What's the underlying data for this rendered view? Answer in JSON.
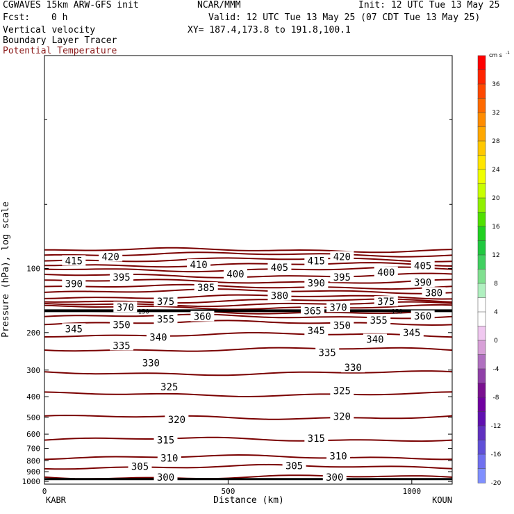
{
  "header": {
    "model": "CGWAVES 15km ARW-GFS init",
    "org": "NCAR/MMM",
    "init": "Init: 12 UTC Tue 13 May 25",
    "fcst_label": "Fcst:",
    "fcst_value": "0 h",
    "valid": "Valid: 12 UTC Tue 13 May 25 (07 CDT Tue 13 May 25)",
    "xy": "XY= 187.4,173.8 to 191.8,100.1",
    "field1": "Vertical velocity",
    "field2": "Boundary Layer Tracer",
    "field3": "Potential Temperature"
  },
  "colors": {
    "theta": "#7a0000",
    "field3_text": "#8b1a1a",
    "pbl": "#000000"
  },
  "chart_data": {
    "type": "line",
    "title": "",
    "xlabel": "Distance (km)",
    "ylabel": "Pressure (hPa), log scale",
    "xlim": [
      0,
      1110
    ],
    "ylim_hpa": [
      1030,
      10
    ],
    "y_scale": "log",
    "x_ticks": [
      0,
      500,
      1000
    ],
    "y_ticks": [
      100,
      200,
      300,
      400,
      500,
      600,
      700,
      800,
      900,
      1000
    ],
    "x_end_labels": [
      "KABR",
      "KOUN"
    ],
    "theta_levels_k": [
      300,
      305,
      310,
      315,
      320,
      325,
      330,
      335,
      340,
      345,
      350,
      355,
      360,
      365,
      370,
      375,
      380,
      385,
      390,
      395,
      400,
      405,
      410,
      415,
      420
    ],
    "theta_pressure_hpa": [
      955,
      855,
      770,
      635,
      500,
      390,
      310,
      240,
      205,
      180,
      168,
      160,
      152,
      147,
      142,
      136,
      128,
      122,
      115,
      108,
      101,
      96,
      91,
      86,
      82
    ],
    "contour_labels": [
      {
        "v": "300",
        "x": 330,
        "p": 955
      },
      {
        "v": "300",
        "x": 790,
        "p": 955
      },
      {
        "v": "305",
        "x": 260,
        "p": 850
      },
      {
        "v": "305",
        "x": 680,
        "p": 845
      },
      {
        "v": "310",
        "x": 340,
        "p": 778
      },
      {
        "v": "310",
        "x": 800,
        "p": 760
      },
      {
        "v": "315",
        "x": 330,
        "p": 640
      },
      {
        "v": "315",
        "x": 740,
        "p": 628
      },
      {
        "v": "320",
        "x": 360,
        "p": 512
      },
      {
        "v": "320",
        "x": 810,
        "p": 495
      },
      {
        "v": "325",
        "x": 340,
        "p": 360
      },
      {
        "v": "325",
        "x": 810,
        "p": 375
      },
      {
        "v": "330",
        "x": 290,
        "p": 278
      },
      {
        "v": "330",
        "x": 840,
        "p": 292
      },
      {
        "v": "335",
        "x": 210,
        "p": 230
      },
      {
        "v": "335",
        "x": 770,
        "p": 248
      },
      {
        "v": "340",
        "x": 310,
        "p": 210
      },
      {
        "v": "340",
        "x": 900,
        "p": 215
      },
      {
        "v": "345",
        "x": 80,
        "p": 192
      },
      {
        "v": "345",
        "x": 740,
        "p": 196
      },
      {
        "v": "345",
        "x": 1000,
        "p": 200
      },
      {
        "v": "350",
        "x": 210,
        "p": 184
      },
      {
        "v": "350",
        "x": 810,
        "p": 185
      },
      {
        "v": "355",
        "x": 330,
        "p": 173
      },
      {
        "v": "355",
        "x": 910,
        "p": 175
      },
      {
        "v": "360",
        "x": 430,
        "p": 168
      },
      {
        "v": "360",
        "x": 1030,
        "p": 167
      },
      {
        "v": "365",
        "x": 730,
        "p": 158
      },
      {
        "v": "370",
        "x": 220,
        "p": 152
      },
      {
        "v": "370",
        "x": 800,
        "p": 152
      },
      {
        "v": "375",
        "x": 330,
        "p": 143
      },
      {
        "v": "375",
        "x": 930,
        "p": 143
      },
      {
        "v": "380",
        "x": 640,
        "p": 134
      },
      {
        "v": "380",
        "x": 1060,
        "p": 130
      },
      {
        "v": "385",
        "x": 440,
        "p": 123
      },
      {
        "v": "390",
        "x": 80,
        "p": 118
      },
      {
        "v": "390",
        "x": 740,
        "p": 117
      },
      {
        "v": "390",
        "x": 1030,
        "p": 116
      },
      {
        "v": "395",
        "x": 210,
        "p": 110
      },
      {
        "v": "395",
        "x": 810,
        "p": 110
      },
      {
        "v": "400",
        "x": 520,
        "p": 106
      },
      {
        "v": "400",
        "x": 930,
        "p": 104
      },
      {
        "v": "405",
        "x": 640,
        "p": 99
      },
      {
        "v": "405",
        "x": 1030,
        "p": 97
      },
      {
        "v": "410",
        "x": 420,
        "p": 96
      },
      {
        "v": "415",
        "x": 80,
        "p": 92
      },
      {
        "v": "415",
        "x": 740,
        "p": 92
      },
      {
        "v": "420",
        "x": 180,
        "p": 88
      },
      {
        "v": "420",
        "x": 810,
        "p": 88
      }
    ],
    "pbl_line": {
      "p_hpa": 158,
      "label": "150",
      "label_x": [
        270,
        960
      ]
    },
    "surface_line": {
      "p_hpa": 975
    },
    "colorbar": {
      "unit": "cm s",
      "unit_exp": "-1",
      "labels": [
        "36",
        "32",
        "28",
        "24",
        "20",
        "16",
        "12",
        "8",
        "4",
        "0",
        "-4",
        "-8",
        "-12",
        "-16",
        "-20"
      ],
      "colors": [
        "#ff0000",
        "#ff2400",
        "#ff4800",
        "#ff6a00",
        "#ff8c00",
        "#ffa800",
        "#ffc800",
        "#ffe600",
        "#f0ff00",
        "#c8ff00",
        "#90f000",
        "#50e000",
        "#20d020",
        "#20c840",
        "#40d060",
        "#80e090",
        "#b0f0c0",
        "#ffffff",
        "#ffffff",
        "#f0c8f0",
        "#d8a0d8",
        "#b070c0",
        "#9040a8",
        "#7a1090",
        "#7000a0",
        "#6010b0",
        "#6030c0",
        "#6050d8",
        "#7070f0",
        "#8090ff"
      ]
    }
  }
}
